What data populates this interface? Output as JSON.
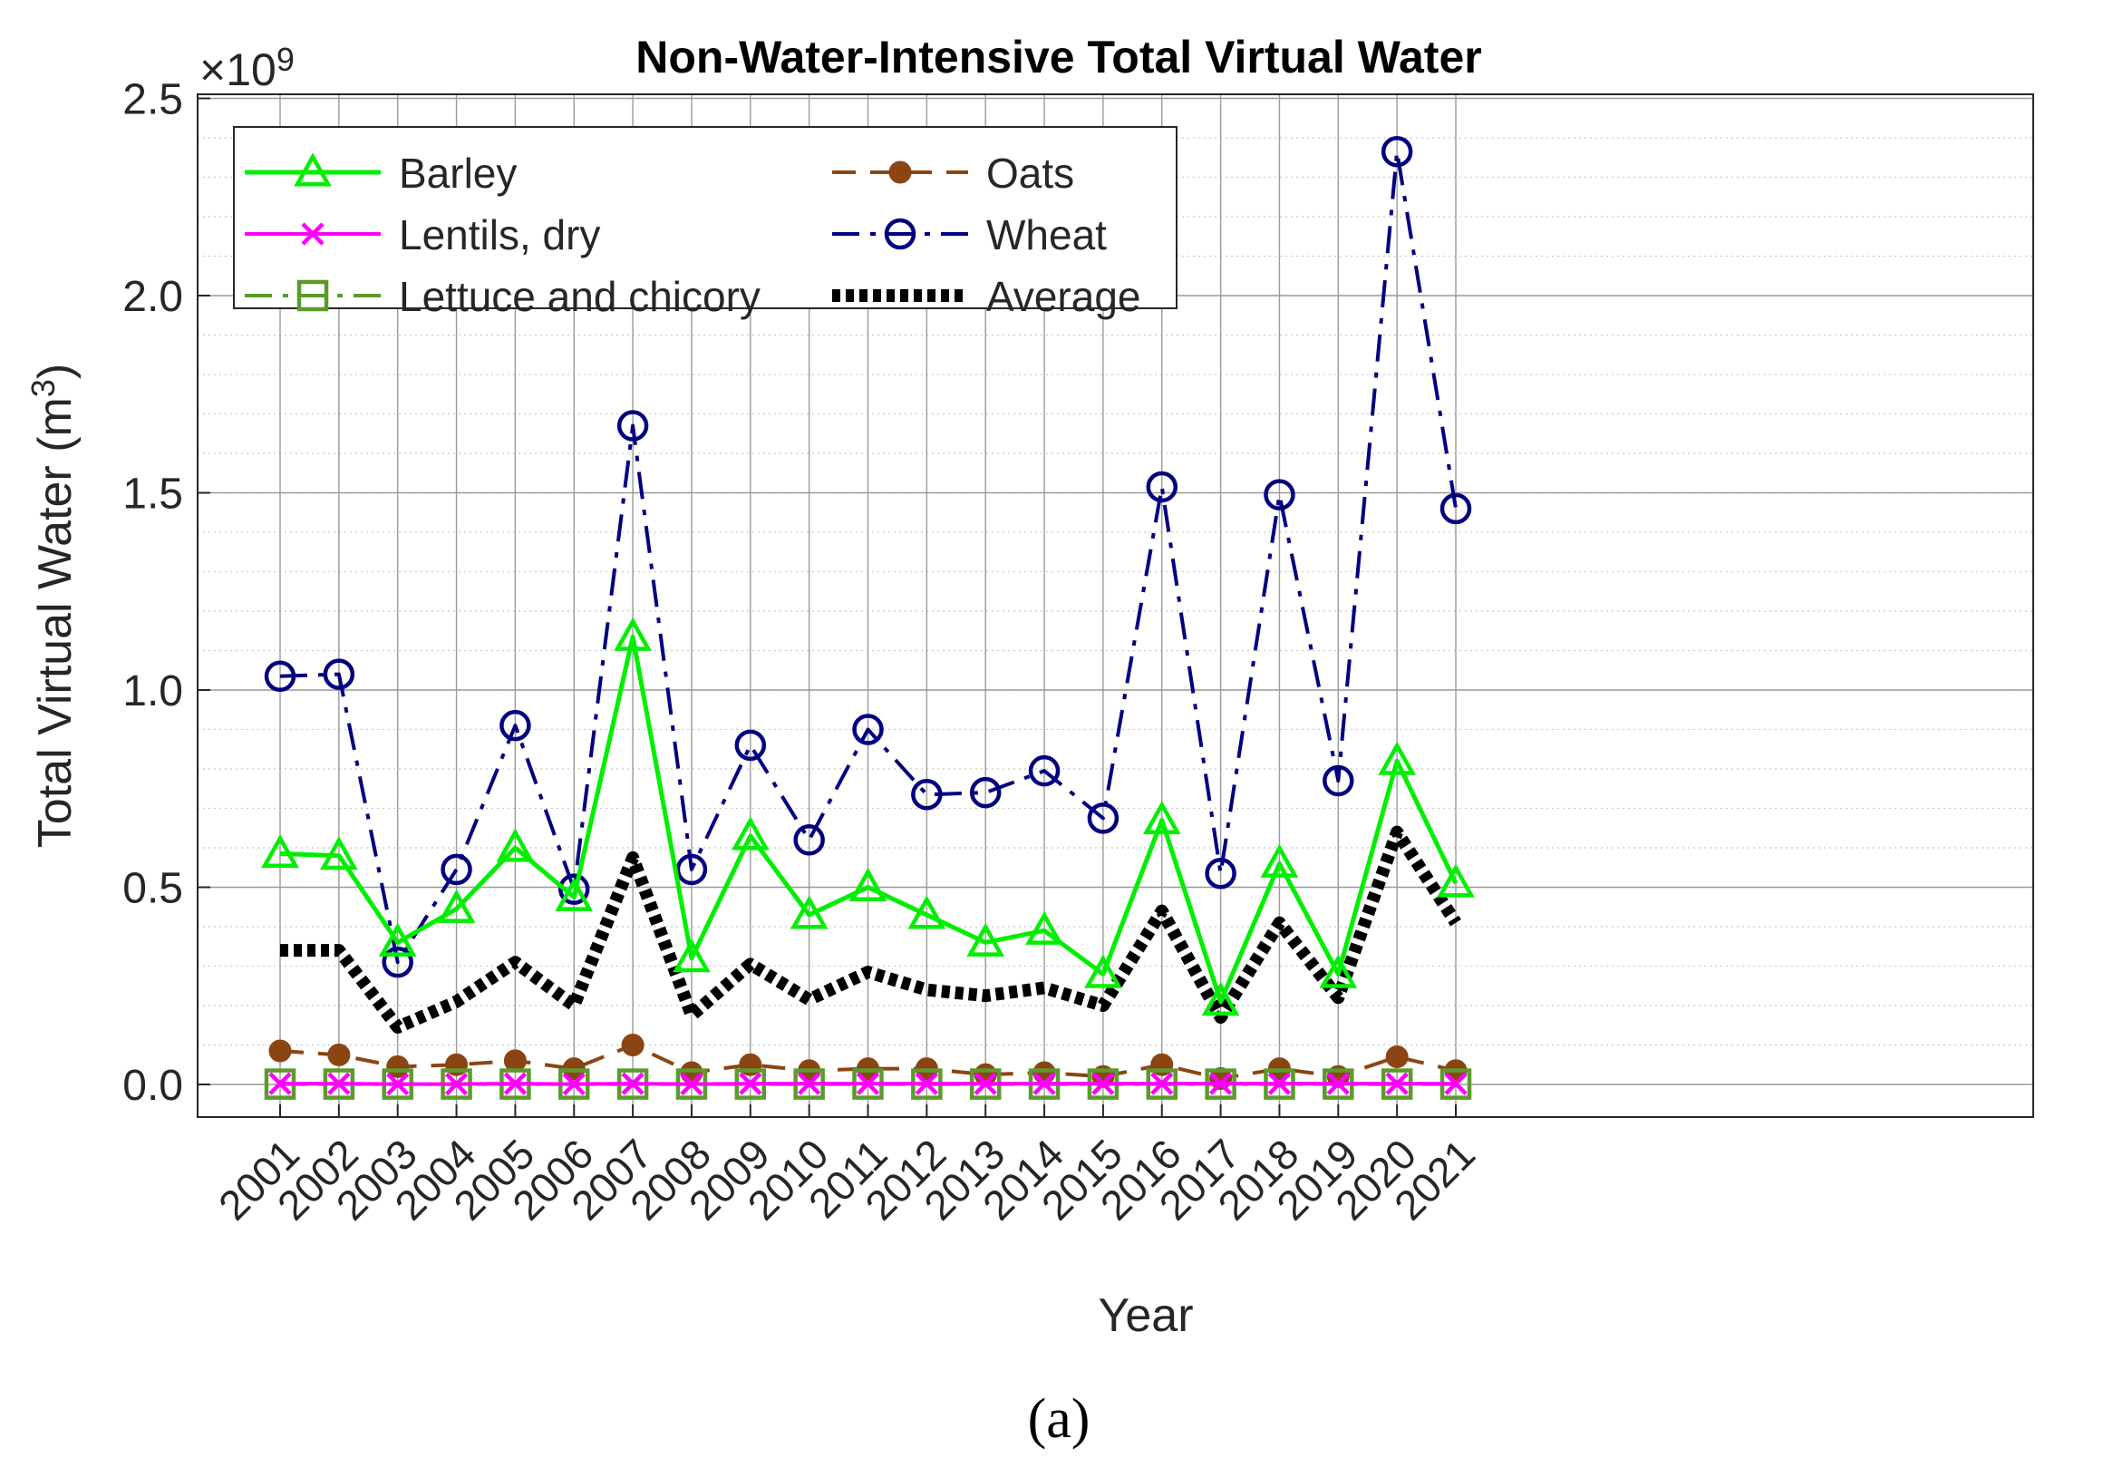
{
  "chart_data": {
    "type": "line",
    "title": "Non-Water-Intensive Total Virtual Water",
    "xlabel": "Year",
    "ylabel": "Total Virtual Water (m",
    "ylabel_superscript": "3",
    "ylabel_close": ")",
    "exponent_label": "×10",
    "exponent_power": "9",
    "exponent": 9,
    "caption": "(a)",
    "ylim": [
      0,
      2.5
    ],
    "yticks": [
      0.0,
      0.5,
      1.0,
      1.5,
      2.0,
      2.5
    ],
    "ytick_labels": [
      "0.0",
      "0.5",
      "1.0",
      "1.5",
      "2.0",
      "2.5"
    ],
    "grid": true,
    "minor_grid": true,
    "legend_position": "top-left",
    "categories": [
      "2001",
      "2002",
      "2003",
      "2004",
      "2005",
      "2006",
      "2007",
      "2008",
      "2009",
      "2010",
      "2011",
      "2012",
      "2013",
      "2014",
      "2015",
      "2016",
      "2017",
      "2018",
      "2019",
      "2020",
      "2021"
    ],
    "series": [
      {
        "name": "Barley",
        "color": "#00ee00",
        "dash": "solid",
        "marker": "triangle",
        "values": [
          0.585,
          0.58,
          0.36,
          0.445,
          0.6,
          0.475,
          1.135,
          0.32,
          0.63,
          0.43,
          0.5,
          0.43,
          0.36,
          0.39,
          0.28,
          0.67,
          0.21,
          0.56,
          0.28,
          0.82,
          0.51
        ]
      },
      {
        "name": "Lentils, dry",
        "color": "#ff00ff",
        "dash": "solid",
        "marker": "x",
        "values": [
          0.002,
          0.002,
          0.001,
          0.001,
          0.002,
          0.001,
          0.002,
          0.001,
          0.002,
          0.002,
          0.002,
          0.002,
          0.002,
          0.002,
          0.002,
          0.002,
          0.002,
          0.002,
          0.002,
          0.002,
          0.002
        ]
      },
      {
        "name": "Lettuce and chicory",
        "color": "#5b9a2c",
        "dash": "dashdot",
        "marker": "square",
        "values": [
          0.001,
          0.001,
          0.001,
          0.001,
          0.001,
          0.001,
          0.001,
          0.001,
          0.001,
          0.001,
          0.001,
          0.001,
          0.001,
          0.001,
          0.001,
          0.001,
          0.001,
          0.001,
          0.001,
          0.001,
          0.001
        ]
      },
      {
        "name": "Oats",
        "color": "#8b4513",
        "dash": "dashed",
        "marker": "dot",
        "values": [
          0.085,
          0.075,
          0.045,
          0.05,
          0.06,
          0.04,
          0.1,
          0.03,
          0.05,
          0.035,
          0.04,
          0.04,
          0.025,
          0.03,
          0.02,
          0.05,
          0.015,
          0.04,
          0.02,
          0.07,
          0.035
        ]
      },
      {
        "name": "Wheat",
        "color": "#000080",
        "dash": "dashdot",
        "marker": "circle",
        "values": [
          1.035,
          1.04,
          0.31,
          0.545,
          0.91,
          0.495,
          1.67,
          0.545,
          0.86,
          0.62,
          0.9,
          0.735,
          0.74,
          0.795,
          0.675,
          1.515,
          0.535,
          1.495,
          0.77,
          2.365,
          1.46
        ]
      },
      {
        "name": "Average",
        "color": "#000000",
        "dash": "dotted",
        "marker": "none",
        "values": [
          0.34,
          0.34,
          0.145,
          0.21,
          0.31,
          0.2,
          0.575,
          0.175,
          0.305,
          0.215,
          0.285,
          0.24,
          0.225,
          0.245,
          0.2,
          0.44,
          0.17,
          0.41,
          0.22,
          0.64,
          0.41
        ]
      }
    ]
  }
}
